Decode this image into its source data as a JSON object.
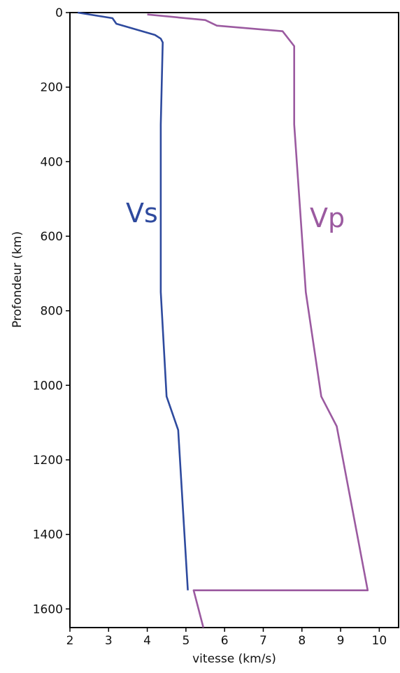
{
  "chart_data": {
    "type": "line",
    "xlabel": "vitesse (km/s)",
    "ylabel": "Profondeur (km)",
    "xlim": [
      2,
      10.5
    ],
    "ylim": [
      0,
      1650
    ],
    "y_inverted": true,
    "x_ticks": [
      2,
      3,
      4,
      5,
      6,
      7,
      8,
      9,
      10
    ],
    "y_ticks": [
      0,
      200,
      400,
      600,
      800,
      1000,
      1200,
      1400,
      1600
    ],
    "grid": false,
    "series": [
      {
        "name": "Vs",
        "color": "#2e4a9e",
        "points": [
          [
            2.2,
            0
          ],
          [
            3.1,
            15
          ],
          [
            3.2,
            30
          ],
          [
            4.2,
            60
          ],
          [
            4.35,
            70
          ],
          [
            4.4,
            80
          ],
          [
            4.35,
            300
          ],
          [
            4.35,
            750
          ],
          [
            4.5,
            1030
          ],
          [
            4.8,
            1120
          ],
          [
            5.05,
            1550
          ]
        ]
      },
      {
        "name": "Vp",
        "color": "#9b5aa0",
        "points": [
          [
            4.0,
            5
          ],
          [
            5.5,
            20
          ],
          [
            5.8,
            35
          ],
          [
            7.5,
            50
          ],
          [
            7.8,
            90
          ],
          [
            7.8,
            300
          ],
          [
            8.1,
            750
          ],
          [
            8.5,
            1030
          ],
          [
            8.9,
            1110
          ],
          [
            9.7,
            1550
          ],
          [
            5.2,
            1550
          ],
          [
            5.45,
            1650
          ]
        ]
      }
    ]
  }
}
